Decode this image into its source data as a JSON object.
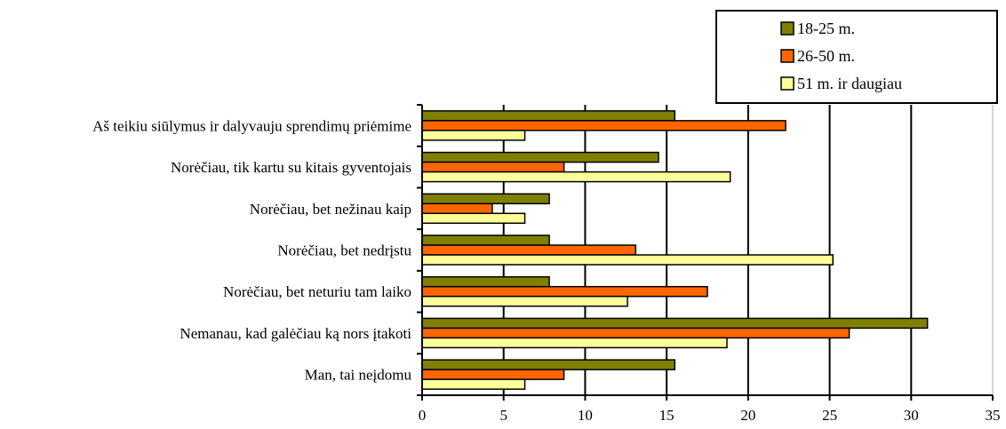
{
  "chart_data": {
    "type": "bar",
    "orientation": "horizontal",
    "categories": [
      "Aš teikiu siūlymus ir dalyvauju sprendimų priėmime",
      "Norėčiau, tik kartu su kitais gyventojais",
      "Norėčiau, bet nežinau kaip",
      "Norėčiau, bet nedrįstu",
      "Norėčiau, bet neturiu tam laiko",
      "Nemanau, kad galėčiau ką nors įtakoti",
      "Man, tai neįdomu"
    ],
    "series": [
      {
        "name": "18-25 m.",
        "color": "#808000",
        "values": [
          15.5,
          14.5,
          7.8,
          7.8,
          7.8,
          31,
          15.5
        ]
      },
      {
        "name": "26-50 m.",
        "color": "#ff6600",
        "values": [
          22.3,
          8.7,
          4.3,
          13.1,
          17.5,
          26.2,
          8.7
        ]
      },
      {
        "name": "51 m. ir daugiau",
        "color": "#ffff99",
        "values": [
          6.3,
          18.9,
          6.3,
          25.2,
          12.6,
          18.7,
          6.3
        ]
      }
    ],
    "xlim": [
      0,
      35
    ],
    "xticks": [
      "0",
      "5",
      "10",
      "15",
      "20",
      "25",
      "30",
      "35"
    ],
    "grid": "vertical",
    "legend_position": "top-right"
  }
}
